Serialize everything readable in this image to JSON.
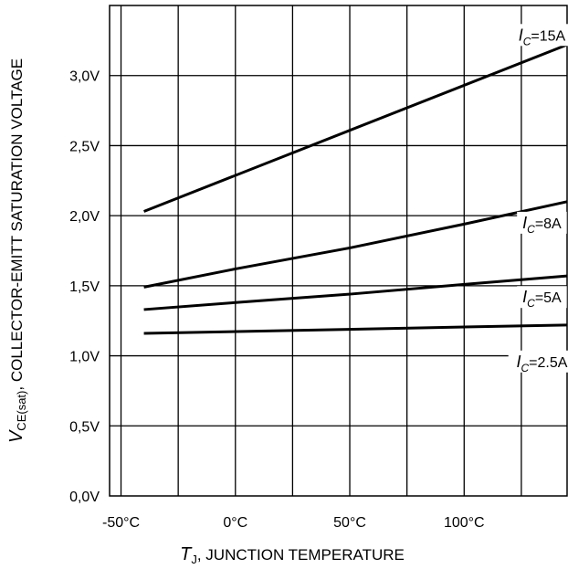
{
  "chart_data": {
    "type": "line",
    "x_axis": {
      "symbol": "T",
      "symbol_sub": "J",
      "label_rest": ", JUNCTION TEMPERATURE",
      "range": [
        -55,
        145
      ],
      "ticks": [
        -50,
        0,
        50,
        100
      ],
      "tick_labels": [
        "-50°C",
        "0°C",
        "50°C",
        "100°C"
      ],
      "grid_step": 25
    },
    "y_axis": {
      "symbol": "V",
      "symbol_sub": "CE(sat)",
      "label_rest": ", COLLECTOR-EMITT SATURATION VOLTAGE",
      "range": [
        0,
        3.5
      ],
      "ticks": [
        0,
        0.5,
        1.0,
        1.5,
        2.0,
        2.5,
        3.0
      ],
      "tick_labels": [
        "0,0V",
        "0,5V",
        "1,0V",
        "1,5V",
        "2,0V",
        "2,5V",
        "3,0V"
      ]
    },
    "grid": true,
    "series": [
      {
        "name": "15A",
        "label_prefix": "I",
        "label_sub": "C",
        "label_value": "=15A",
        "label_at": [
          134,
          3.27
        ],
        "points": [
          [
            -40,
            2.03
          ],
          [
            145,
            3.22
          ]
        ]
      },
      {
        "name": "8A",
        "label_prefix": "I",
        "label_sub": "C",
        "label_value": "=8A",
        "label_at": [
          134,
          1.93
        ],
        "points": [
          [
            -40,
            1.49
          ],
          [
            0,
            1.62
          ],
          [
            50,
            1.77
          ],
          [
            100,
            1.94
          ],
          [
            145,
            2.1
          ]
        ]
      },
      {
        "name": "5A",
        "label_prefix": "I",
        "label_sub": "C",
        "label_value": "=5A",
        "label_at": [
          134,
          1.4
        ],
        "points": [
          [
            -40,
            1.33
          ],
          [
            0,
            1.38
          ],
          [
            50,
            1.44
          ],
          [
            100,
            1.51
          ],
          [
            145,
            1.57
          ]
        ]
      },
      {
        "name": "2.5A",
        "label_prefix": "I",
        "label_sub": "C",
        "label_value": "=2.5A",
        "label_at": [
          134,
          0.94
        ],
        "points": [
          [
            -40,
            1.16
          ],
          [
            145,
            1.22
          ]
        ]
      }
    ]
  }
}
